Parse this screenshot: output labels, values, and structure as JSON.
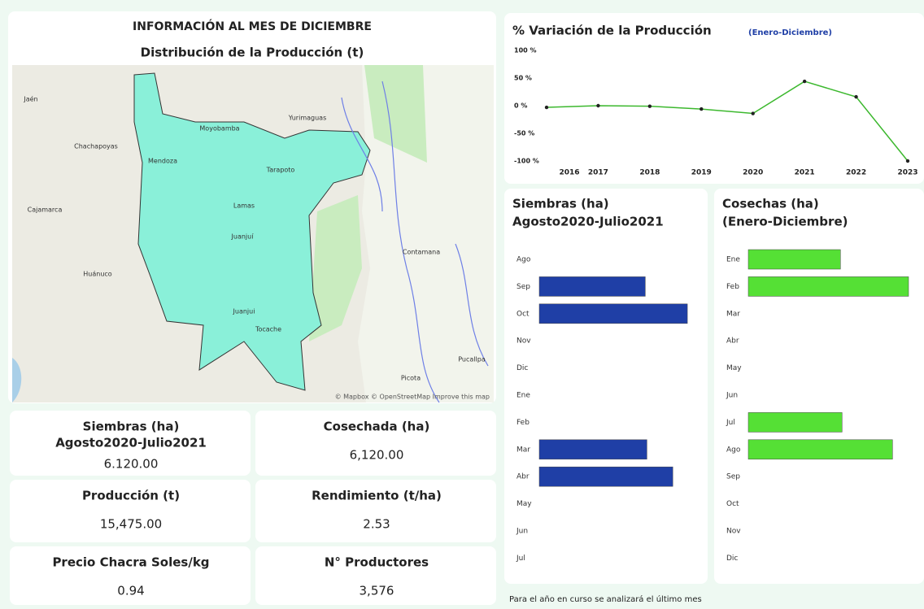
{
  "header": {
    "title": "INFORMACIÓN AL MES DE DICIEMBRE"
  },
  "map": {
    "title": "Distribución de la Producción (t)",
    "places": [
      "Moyobamba",
      "Yurimaguas",
      "Tarapoto",
      "Lamas",
      "Juanjuí",
      "Tocache",
      "Chachapoyas",
      "Cajamarca",
      "Huánuco",
      "Contamana",
      "Pucallpa",
      "Mendoza",
      "Jaén",
      "Juanjui",
      "Picota"
    ],
    "attribution": "© Mapbox © OpenStreetMap Improve this map"
  },
  "kpis": [
    {
      "label": [
        "Siembras (ha)",
        "Agosto2020-Julio2021"
      ],
      "value": "6.120.00"
    },
    {
      "label": [
        "Cosechada (ha)"
      ],
      "value": "6,120.00"
    },
    {
      "label": [
        "Producción (t)"
      ],
      "value": "15,475.00"
    },
    {
      "label": [
        "Rendimiento (t/ha)"
      ],
      "value": "2.53"
    },
    {
      "label": [
        "Precio Chacra Soles/kg"
      ],
      "value": "0.94"
    },
    {
      "label": [
        "N° Productores"
      ],
      "value": "3,576"
    }
  ],
  "chart_data": [
    {
      "type": "line",
      "title": "% Variación de la Producción",
      "subtitle": "(Enero-Diciembre)",
      "x": [
        2016,
        2017,
        2018,
        2019,
        2020,
        2021,
        2022,
        2023
      ],
      "values": [
        -3,
        0,
        -1,
        -6,
        -14,
        44,
        16,
        -100
      ],
      "color": "#3cb82e",
      "xlim": [
        2016,
        2023
      ],
      "xticks": [
        2016,
        2017,
        2018,
        2019,
        2020,
        2021,
        2022,
        2023
      ],
      "ylim": [
        -100,
        100
      ],
      "yticks": [
        {
          "value": 100,
          "label": "100 %"
        },
        {
          "value": 50,
          "label": "50 %"
        },
        {
          "value": 0,
          "label": "0 %"
        },
        {
          "value": -50,
          "label": "-50 %"
        },
        {
          "value": -100,
          "label": "-100 %"
        }
      ]
    },
    {
      "type": "hbar",
      "title": [
        "Siembras (ha)",
        "Agosto2020-Julio2021"
      ],
      "categories": [
        "Ago",
        "Sep",
        "Oct",
        "Nov",
        "Dic",
        "Ene",
        "Feb",
        "Mar",
        "Abr",
        "May",
        "Jun",
        "Jul"
      ],
      "values": [
        null,
        1310,
        1830,
        null,
        null,
        null,
        null,
        1330,
        1650,
        null,
        null,
        null
      ],
      "color": "#1f3fa6",
      "xlim": [
        0,
        2000
      ]
    },
    {
      "type": "hbar",
      "title": [
        "Cosechas (ha)",
        "(Enero-Diciembre)"
      ],
      "categories": [
        "Ene",
        "Feb",
        "Mar",
        "Abr",
        "May",
        "Jun",
        "Jul",
        "Ago",
        "Sep",
        "Oct",
        "Nov",
        "Dic"
      ],
      "values": [
        1150,
        2000,
        null,
        null,
        null,
        null,
        1170,
        1800,
        null,
        null,
        null,
        null
      ],
      "color": "#55e035",
      "xlim": [
        0,
        2000
      ]
    }
  ],
  "footnote": "Para el año en curso se analizará el último mes"
}
